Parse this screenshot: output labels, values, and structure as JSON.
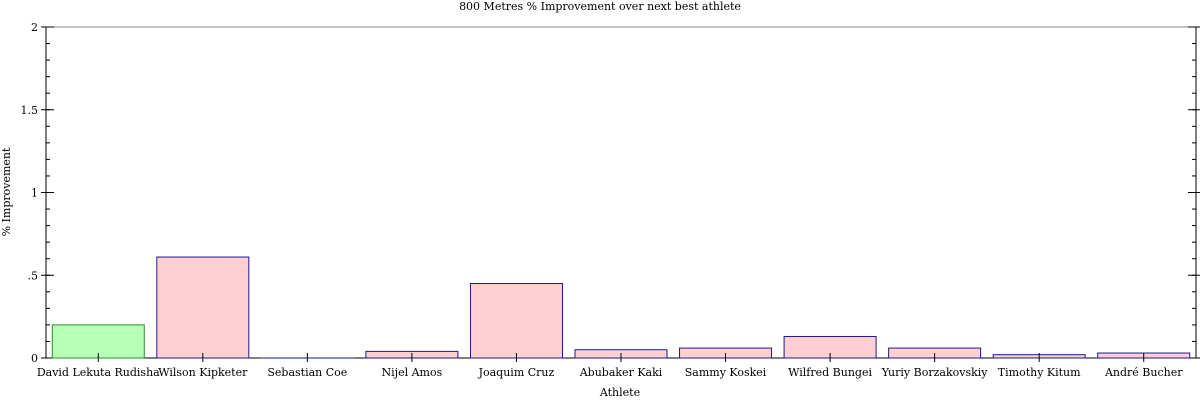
{
  "chart_data": {
    "type": "bar",
    "title": "800 Metres % Improvement over next best athlete",
    "xlabel": "Athlete",
    "ylabel": "% Improvement",
    "ylim": [
      0,
      2
    ],
    "yticks": [
      {
        "value": 0,
        "label": "0"
      },
      {
        "value": 0.5,
        "label": ".5"
      },
      {
        "value": 1,
        "label": "1"
      },
      {
        "value": 1.5,
        "label": "1.5"
      },
      {
        "value": 2,
        "label": "2"
      }
    ],
    "categories": [
      "David Lekuta Rudisha",
      "Wilson Kipketer",
      "Sebastian Coe",
      "Nijel Amos",
      "Joaquim Cruz",
      "Abubaker Kaki",
      "Sammy Koskei",
      "Wilfred Bungei",
      "Yuriy Borzakovskiy",
      "Timothy Kitum",
      "André Bucher"
    ],
    "values": [
      0.2,
      0.61,
      0.0,
      0.04,
      0.45,
      0.05,
      0.06,
      0.13,
      0.06,
      0.02,
      0.03
    ],
    "highlight_index": 0,
    "colors": {
      "highlight_fill": "#b7ffb7",
      "highlight_stroke": "#2e8b2e",
      "bar_fill": "#ffcfd1",
      "bar_stroke": "#1a1a8c",
      "axis": "#000000"
    }
  }
}
